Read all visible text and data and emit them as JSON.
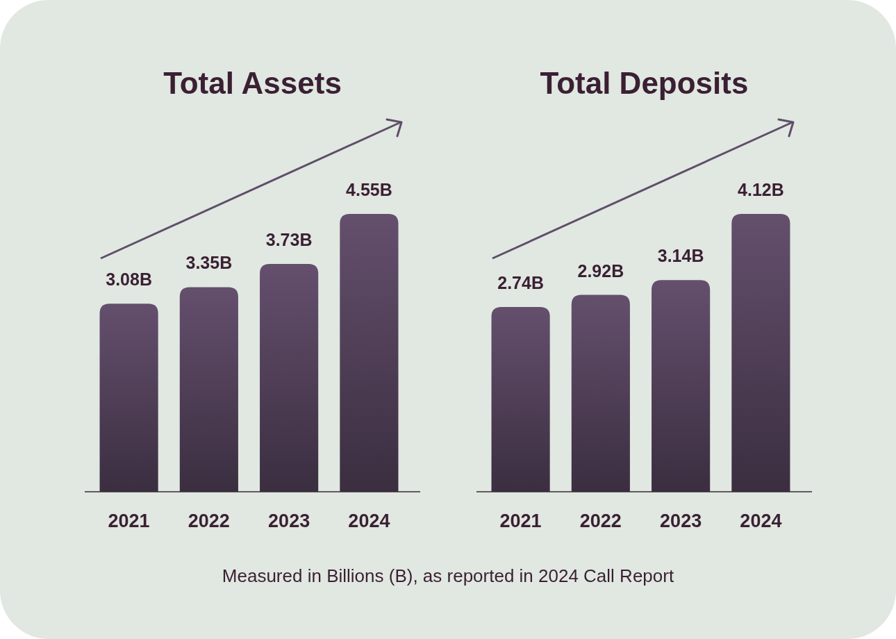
{
  "chart_data": [
    {
      "type": "bar",
      "title": "Total Assets",
      "categories": [
        "2021",
        "2022",
        "2023",
        "2024"
      ],
      "values": [
        3.08,
        3.35,
        3.73,
        4.55
      ],
      "value_labels": [
        "3.08B",
        "3.35B",
        "3.73B",
        "4.55B"
      ],
      "color": "#5a4762"
    },
    {
      "type": "bar",
      "title": "Total Deposits",
      "categories": [
        "2021",
        "2022",
        "2023",
        "2024"
      ],
      "values": [
        2.74,
        2.92,
        3.14,
        4.12
      ],
      "value_labels": [
        "2.74B",
        "2.92B",
        "3.14B",
        "4.12B"
      ],
      "color": "#5a4762",
      "annotations": [
        "Measured in Billions (B), as reported in 2024 Call Report"
      ]
    }
  ]
}
